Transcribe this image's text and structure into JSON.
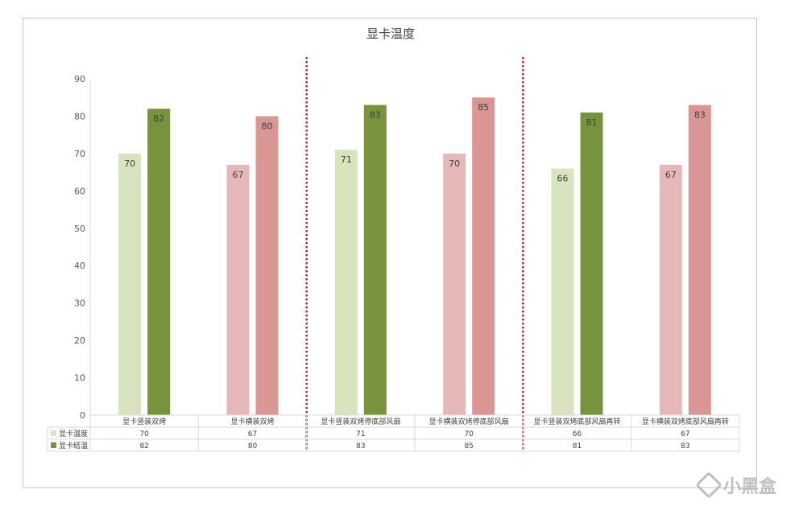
{
  "chart_data": {
    "type": "bar",
    "title": "显卡温度",
    "categories": [
      "显卡竖装双烤",
      "显卡横装双烤",
      "显卡竖装双烤停底部风扇",
      "显卡横装双烤停底部风扇",
      "显卡竖装双烤底部风扇再转",
      "显卡横装双烤底部风扇再转"
    ],
    "series": [
      {
        "name": "显卡温度",
        "values": [
          70,
          67,
          71,
          70,
          66,
          67
        ]
      },
      {
        "name": "显卡结温",
        "values": [
          82,
          80,
          83,
          85,
          81,
          83
        ]
      }
    ],
    "ylim": [
      0,
      90
    ],
    "yticks": [
      0,
      10,
      20,
      30,
      40,
      50,
      60,
      70,
      80,
      90
    ],
    "grid": false,
    "legend": "data-table",
    "colors": {
      "green_light": "#d7e4bd",
      "green_dark": "#77933c",
      "red_light": "#e6b9b8",
      "red_dark": "#d99694",
      "divider": "#953735",
      "axis": "#d9d9d9"
    },
    "series_colors": [
      [
        "#d7e4bd",
        "#e6b9b8"
      ],
      [
        "#77933c",
        "#d99694"
      ]
    ],
    "category_palette": [
      0,
      1,
      0,
      1,
      0,
      1
    ]
  },
  "watermark": {
    "text": "小黑盒",
    "icon": "heybox-logo-icon"
  }
}
